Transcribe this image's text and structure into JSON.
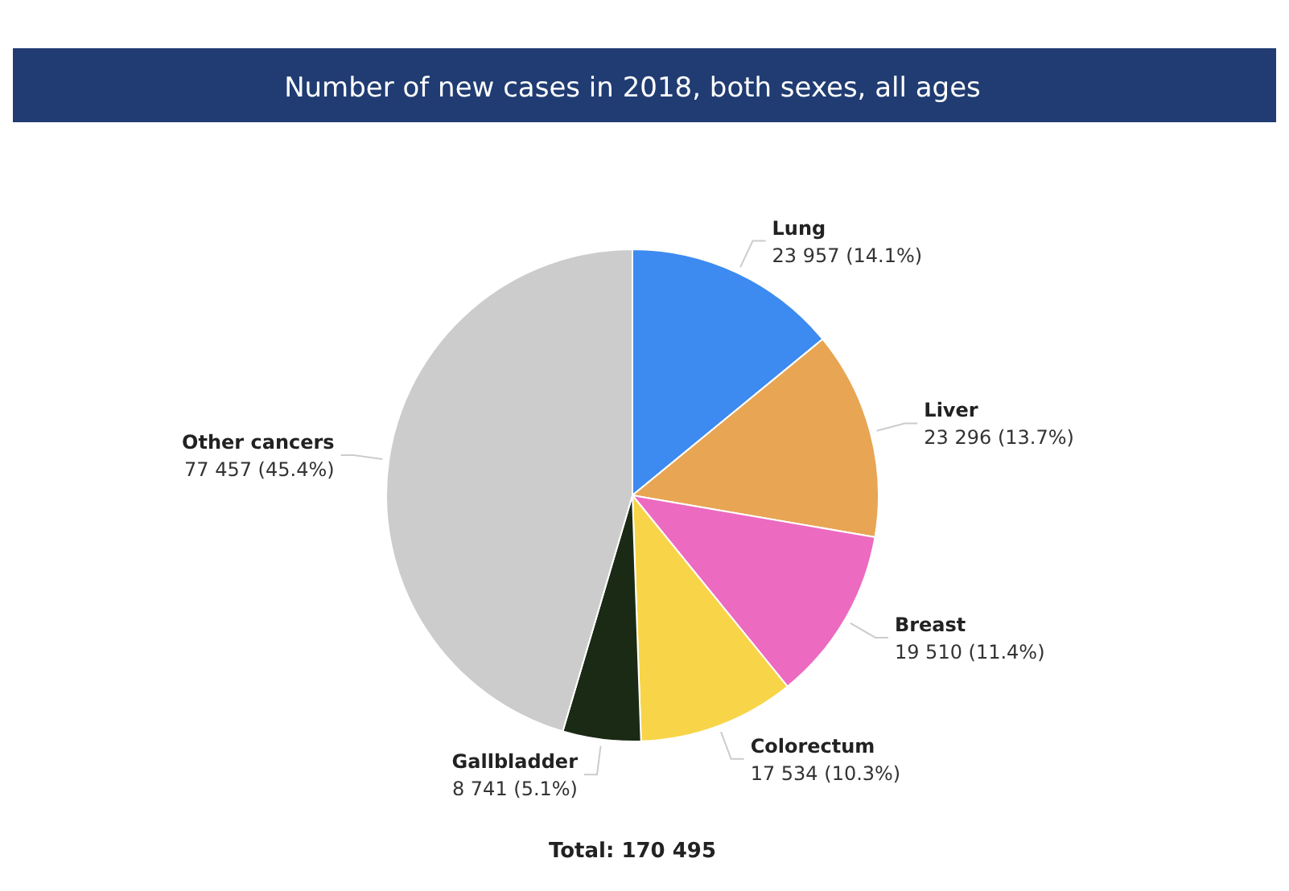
{
  "chart_data": {
    "type": "pie",
    "title": "Number of new cases in 2018, both sexes, all ages",
    "categories": [
      "Lung",
      "Liver",
      "Breast",
      "Colorectum",
      "Gallbladder",
      "Other cancers"
    ],
    "values": [
      23957,
      23296,
      19510,
      17534,
      8741,
      77457
    ],
    "colors": [
      "#3d8af0",
      "#e8a553",
      "#ec6ac0",
      "#f8d548",
      "#1a2a14",
      "#cccccc"
    ],
    "value_labels": [
      "23 957 (14.1%)",
      "23 296 (13.7%)",
      "19 510 (11.4%)",
      "17 534 (10.3%)",
      "8 741 (5.1%)",
      "77 457 (45.4%)"
    ],
    "annotations": [
      "Total: 170 495"
    ]
  }
}
